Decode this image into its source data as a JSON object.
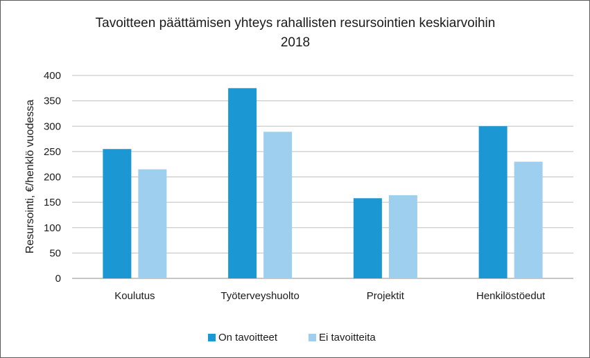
{
  "chart_data": {
    "type": "bar",
    "title": "Tavoitteen päättämisen yhteys rahallisten resursointien keskiarvoihin",
    "subtitle": "2018",
    "xlabel": "",
    "ylabel": "Resursointi, €/henklö vuodessa",
    "categories": [
      "Koulutus",
      "Työterveyshuolto",
      "Projektit",
      "Henkilöstöedut"
    ],
    "series": [
      {
        "name": "On tavoitteet",
        "color": "#1b98d3",
        "values": [
          255,
          375,
          158,
          300
        ]
      },
      {
        "name": "Ei tavoitteita",
        "color": "#9fcfee",
        "values": [
          215,
          289,
          164,
          230
        ]
      }
    ],
    "ylim": [
      0,
      400
    ],
    "yticks": [
      0,
      50,
      100,
      150,
      200,
      250,
      300,
      350,
      400
    ],
    "grid": true,
    "legend": "bottom-center",
    "gridColor": "#bfbfbf",
    "axisColor": "#8c8c8c"
  }
}
